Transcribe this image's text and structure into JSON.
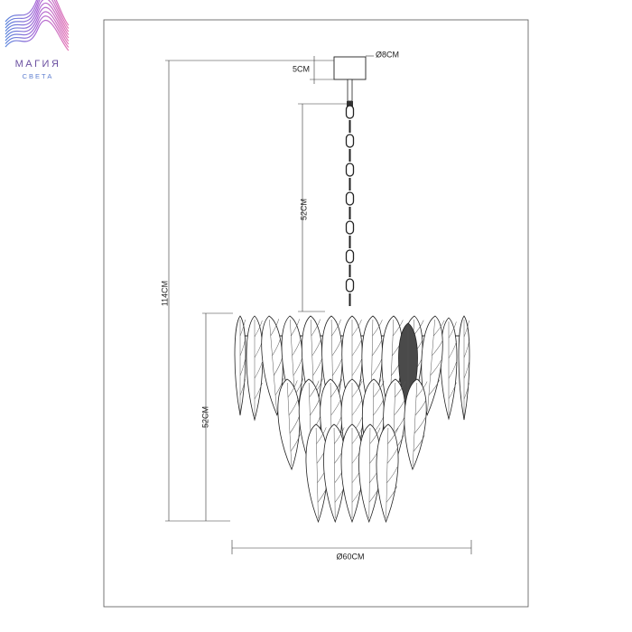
{
  "logo": {
    "title": "МАГИЯ",
    "subtitle": "СВЕТА"
  },
  "dimensions": {
    "canopy_diameter": "Ø8CM",
    "canopy_height": "5CM",
    "chain_length": "52CM",
    "total_height": "114CM",
    "body_height": "52CM",
    "body_diameter": "Ø60CM"
  }
}
